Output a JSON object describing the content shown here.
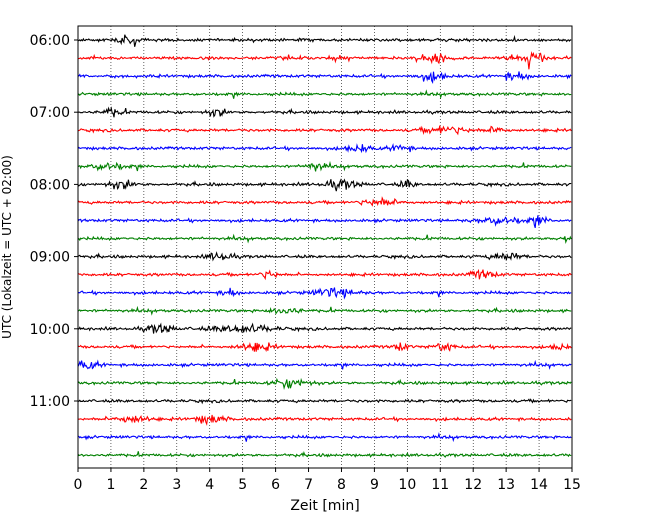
{
  "chart_data": {
    "type": "line",
    "title": "",
    "xlabel": "Zeit  [min]",
    "ylabel": "UTC (Lokalzeit = UTC + 02:00)",
    "xlim": [
      0,
      15
    ],
    "x_ticks": [
      "0",
      "1",
      "2",
      "3",
      "4",
      "5",
      "6",
      "7",
      "8",
      "9",
      "10",
      "11",
      "12",
      "13",
      "14",
      "15"
    ],
    "x_ticks_values": [
      0,
      1,
      2,
      3,
      4,
      5,
      6,
      7,
      8,
      9,
      10,
      11,
      12,
      13,
      14,
      15
    ],
    "y_ticks": [
      {
        "label": "06:00",
        "row": 0
      },
      {
        "label": "07:00",
        "row": 4
      },
      {
        "label": "08:00",
        "row": 8
      },
      {
        "label": "09:00",
        "row": 12
      },
      {
        "label": "10:00",
        "row": 16
      },
      {
        "label": "11:00",
        "row": 20
      }
    ],
    "grid": "vertical-dotted",
    "row_minutes": 15,
    "row_colors": [
      "#000000",
      "#ff0000",
      "#0000ff",
      "#008000"
    ],
    "series": [
      {
        "start": "06:00",
        "bursts": [
          [
            1.5,
            0.4
          ]
        ]
      },
      {
        "start": "06:15",
        "bursts": [
          [
            10.8,
            0.7
          ],
          [
            13.8,
            0.8
          ]
        ]
      },
      {
        "start": "06:30",
        "bursts": [
          [
            10.8,
            0.6
          ],
          [
            13.3,
            0.5
          ]
        ]
      },
      {
        "start": "06:45",
        "bursts": []
      },
      {
        "start": "07:00",
        "bursts": [
          [
            1.0,
            0.4
          ],
          [
            4.2,
            0.4
          ]
        ]
      },
      {
        "start": "07:15",
        "bursts": [
          [
            11.2,
            0.9
          ],
          [
            12.7,
            0.4
          ]
        ]
      },
      {
        "start": "07:30",
        "bursts": [
          [
            8.5,
            0.5
          ],
          [
            9.8,
            0.4
          ]
        ]
      },
      {
        "start": "07:45",
        "bursts": [
          [
            0.9,
            0.7
          ],
          [
            7.2,
            0.4
          ]
        ]
      },
      {
        "start": "08:00",
        "bursts": [
          [
            1.3,
            0.6
          ],
          [
            8.0,
            0.7
          ],
          [
            10.0,
            0.3
          ]
        ]
      },
      {
        "start": "08:15",
        "bursts": [
          [
            9.2,
            0.8
          ]
        ]
      },
      {
        "start": "08:30",
        "bursts": [
          [
            12.8,
            0.9
          ],
          [
            14.0,
            0.4
          ]
        ]
      },
      {
        "start": "08:45",
        "bursts": [
          [
            14.9,
            0.4
          ]
        ]
      },
      {
        "start": "09:00",
        "bursts": [
          [
            4.3,
            0.5
          ],
          [
            13.0,
            0.6
          ]
        ]
      },
      {
        "start": "09:15",
        "bursts": [
          [
            5.8,
            0.4
          ],
          [
            12.3,
            0.5
          ]
        ]
      },
      {
        "start": "09:30",
        "bursts": [
          [
            7.8,
            0.9
          ],
          [
            4.6,
            0.3
          ]
        ]
      },
      {
        "start": "09:45",
        "bursts": [
          [
            6.3,
            0.6
          ]
        ]
      },
      {
        "start": "10:00",
        "bursts": [
          [
            5.0,
            1.2
          ],
          [
            2.5,
            0.6
          ]
        ]
      },
      {
        "start": "10:15",
        "bursts": [
          [
            5.4,
            0.7
          ],
          [
            9.8,
            0.3
          ],
          [
            14.6,
            0.3
          ],
          [
            11.1,
            0.4
          ]
        ]
      },
      {
        "start": "10:30",
        "bursts": [
          [
            0.1,
            0.7
          ]
        ]
      },
      {
        "start": "10:45",
        "bursts": [
          [
            6.5,
            0.8
          ]
        ]
      },
      {
        "start": "11:00",
        "bursts": []
      },
      {
        "start": "11:15",
        "bursts": [
          [
            1.6,
            0.7
          ],
          [
            4.0,
            0.6
          ]
        ]
      },
      {
        "start": "11:30",
        "bursts": []
      },
      {
        "start": "11:45",
        "bursts": []
      }
    ]
  }
}
